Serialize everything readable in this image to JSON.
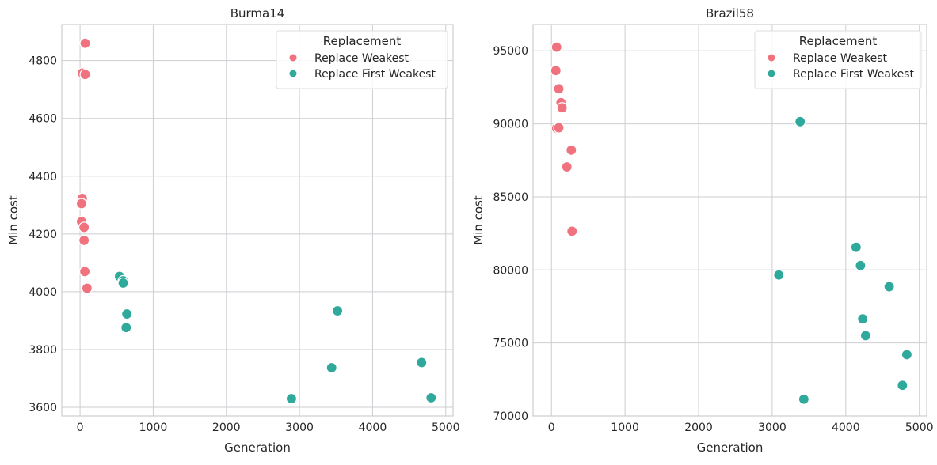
{
  "colors": {
    "replace_weakest": "#f0727f",
    "replace_first_weakest": "#2fa99b",
    "grid": "#cdcdd2",
    "text": "#262626"
  },
  "chart_data": [
    {
      "type": "scatter",
      "title": "Burma14",
      "xlabel": "Generation",
      "ylabel": "Min cost",
      "xlim": [
        -250,
        5100
      ],
      "ylim": [
        3570,
        4925
      ],
      "xticks": [
        0,
        1000,
        2000,
        3000,
        4000,
        5000
      ],
      "xtick_labels": [
        "0",
        "1000",
        "2000",
        "3000",
        "4000",
        "5000"
      ],
      "yticks": [
        3600,
        3800,
        4000,
        4200,
        4400,
        4600,
        4800
      ],
      "ytick_labels": [
        "3600",
        "3800",
        "4000",
        "4200",
        "4400",
        "4600",
        "4800"
      ],
      "grid": true,
      "legend": {
        "title": "Replacement",
        "placement": "top-right"
      },
      "series": [
        {
          "name": "Replace Weakest",
          "color_key": "replace_weakest",
          "points": [
            [
              70,
              4860
            ],
            [
              30,
              4757
            ],
            [
              70,
              4752
            ],
            [
              30,
              4323
            ],
            [
              20,
              4305
            ],
            [
              20,
              4243
            ],
            [
              55,
              4223
            ],
            [
              55,
              4178
            ],
            [
              65,
              4070
            ],
            [
              95,
              4012
            ]
          ]
        },
        {
          "name": "Replace First Weakest",
          "color_key": "replace_first_weakest",
          "points": [
            [
              540,
              4053
            ],
            [
              590,
              4038
            ],
            [
              590,
              4030
            ],
            [
              640,
              3923
            ],
            [
              630,
              3876
            ],
            [
              3520,
              3934
            ],
            [
              3440,
              3737
            ],
            [
              4670,
              3755
            ],
            [
              2890,
              3630
            ],
            [
              4800,
              3633
            ]
          ]
        }
      ]
    },
    {
      "type": "scatter",
      "title": "Brazil58",
      "xlabel": "Generation",
      "ylabel": "Min cost",
      "xlim": [
        -250,
        5100
      ],
      "ylim": [
        70000,
        96800
      ],
      "xticks": [
        0,
        1000,
        2000,
        3000,
        4000,
        5000
      ],
      "xtick_labels": [
        "0",
        "1000",
        "2000",
        "3000",
        "4000",
        "5000"
      ],
      "yticks": [
        70000,
        75000,
        80000,
        85000,
        90000,
        95000
      ],
      "ytick_labels": [
        "70000",
        "75000",
        "80000",
        "85000",
        "90000",
        "95000"
      ],
      "grid": true,
      "legend": {
        "title": "Replacement",
        "placement": "top-right"
      },
      "series": [
        {
          "name": "Replace Weakest",
          "color_key": "replace_weakest",
          "points": [
            [
              70,
              95250
            ],
            [
              60,
              93650
            ],
            [
              100,
              92400
            ],
            [
              130,
              91450
            ],
            [
              145,
              91100
            ],
            [
              70,
              89700
            ],
            [
              100,
              89730
            ],
            [
              270,
              88200
            ],
            [
              210,
              87050
            ],
            [
              280,
              82650
            ]
          ]
        },
        {
          "name": "Replace First Weakest",
          "color_key": "replace_first_weakest",
          "points": [
            [
              3380,
              90150
            ],
            [
              4140,
              81550
            ],
            [
              4200,
              80300
            ],
            [
              3090,
              79650
            ],
            [
              4590,
              78850
            ],
            [
              4230,
              76650
            ],
            [
              4270,
              75500
            ],
            [
              4830,
              74200
            ],
            [
              4770,
              72100
            ],
            [
              3430,
              71150
            ]
          ]
        }
      ]
    }
  ]
}
